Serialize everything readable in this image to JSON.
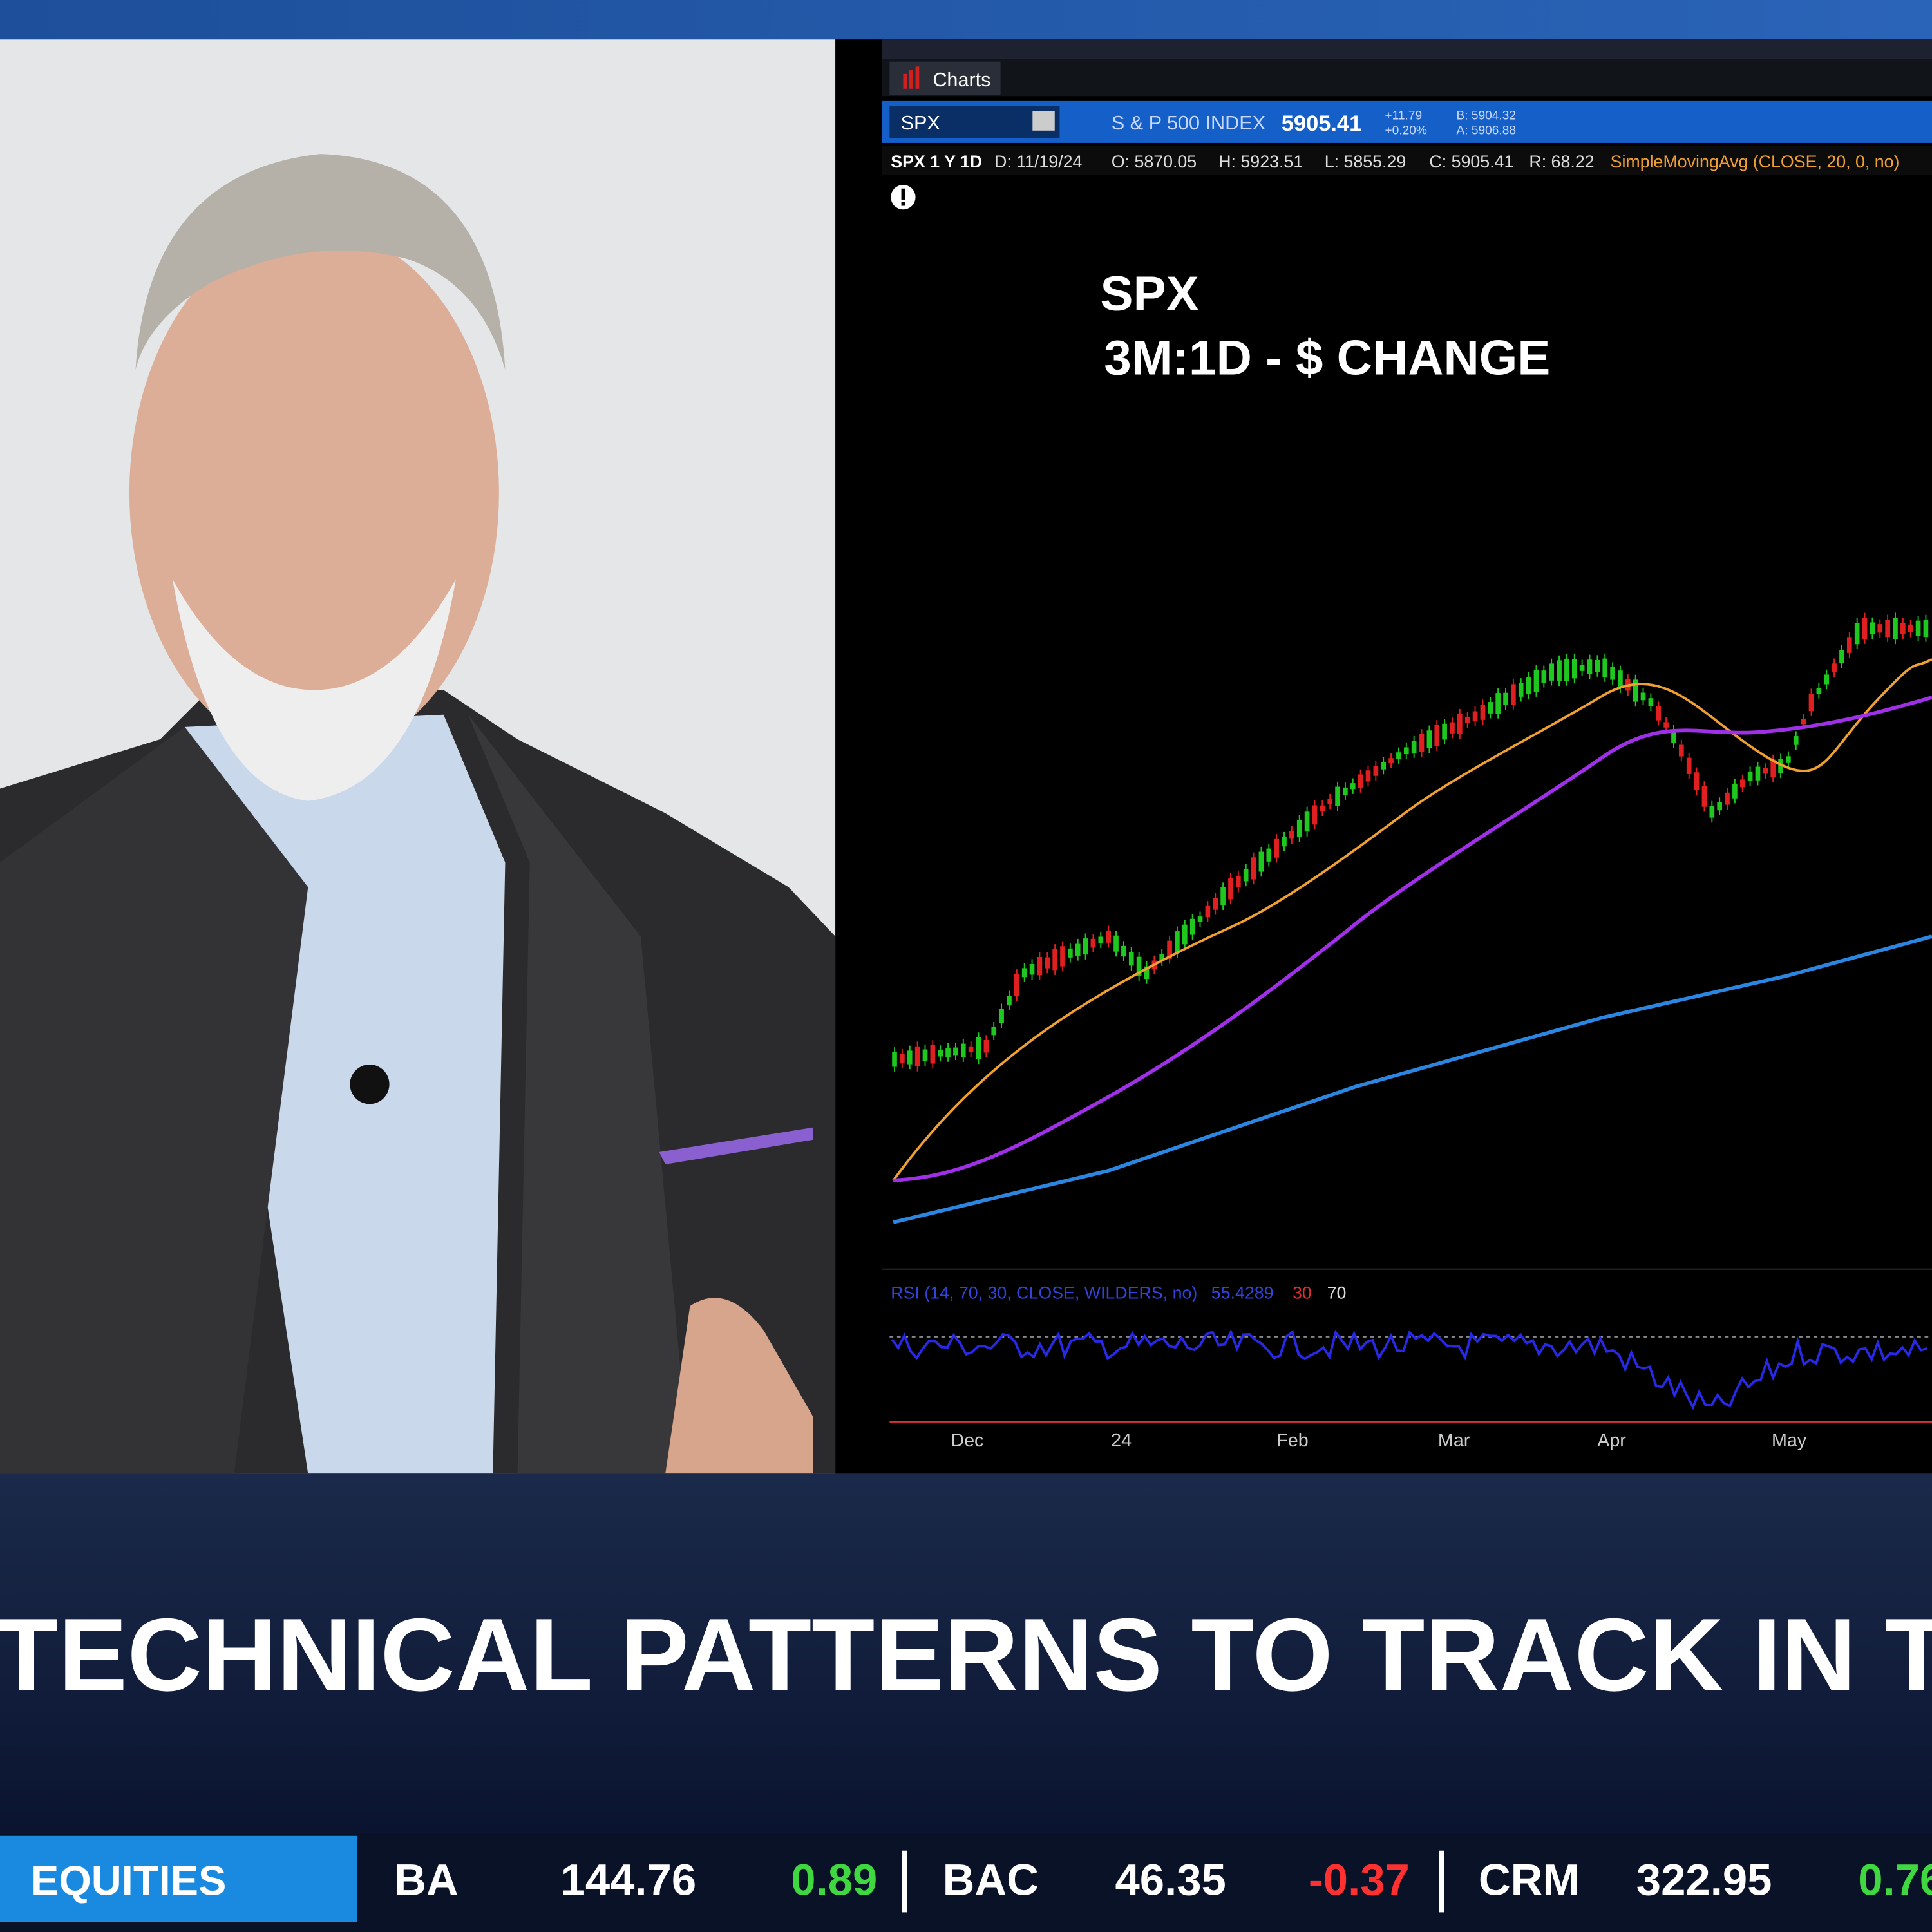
{
  "window": {
    "title": "Charts",
    "symbol": "SPX",
    "index_name": "S & P 500 INDEX",
    "last": "5905.41",
    "change": "+11.79",
    "change_pct": "+0.20%",
    "bid": "B: 5904.32",
    "ask": "A: 5906.88"
  },
  "study_bar": {
    "period": "SPX 1 Y 1D",
    "date": "D: 11/19/24",
    "open": "O: 5870.05",
    "high": "H: 5923.51",
    "low": "L: 5855.29",
    "close": "C: 5905.41",
    "range": "R: 68.22",
    "study": "SimpleMovingAvg (CLOSE, 20, 0, no)"
  },
  "overlay": {
    "symbol": "SPX",
    "subtitle": "3M:1D - $ CHANGE"
  },
  "rsi": {
    "study": "RSI (14, 70, 30, CLOSE, WILDERS, no)",
    "value": "55.4289",
    "oversold": "30",
    "overbought": "70"
  },
  "x_axis": [
    "Dec",
    "24",
    "Feb",
    "Mar",
    "Apr",
    "May"
  ],
  "headline": "TECHNICAL PATTERNS TO TRACK IN TH",
  "ticker": {
    "section": "EQUITIES",
    "quotes": [
      {
        "symbol": "BA",
        "price": "144.76",
        "change": "0.89"
      },
      {
        "symbol": "BAC",
        "price": "46.35",
        "change": "-0.37"
      },
      {
        "symbol": "CRM",
        "price": "322.95",
        "change": "0.76"
      }
    ]
  }
}
